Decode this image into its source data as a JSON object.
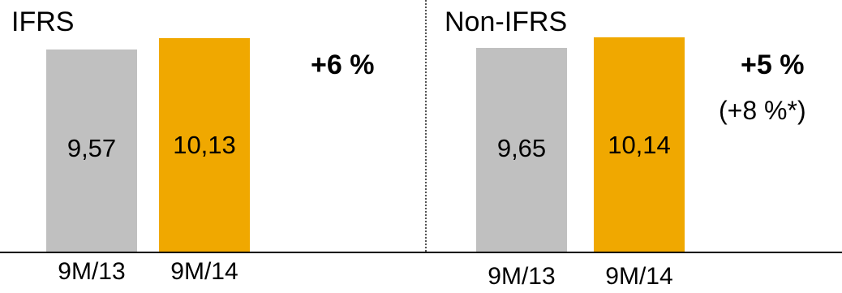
{
  "colors": {
    "prior": "#c0c0c0",
    "current": "#f0a800",
    "axis": "#000000"
  },
  "chart_data": [
    {
      "type": "bar",
      "title": "IFRS",
      "categories": [
        "9M/13",
        "9M/14"
      ],
      "values": [
        9.57,
        10.13
      ],
      "value_labels": [
        "9,57",
        "10,13"
      ],
      "change_label": "+6 %",
      "change_note": ""
    },
    {
      "type": "bar",
      "title": "Non-IFRS",
      "categories": [
        "9M/13",
        "9M/14"
      ],
      "values": [
        9.65,
        10.14
      ],
      "value_labels": [
        "9,65",
        "10,14"
      ],
      "change_label": "+5 %",
      "change_note": "(+8 %*)"
    }
  ]
}
